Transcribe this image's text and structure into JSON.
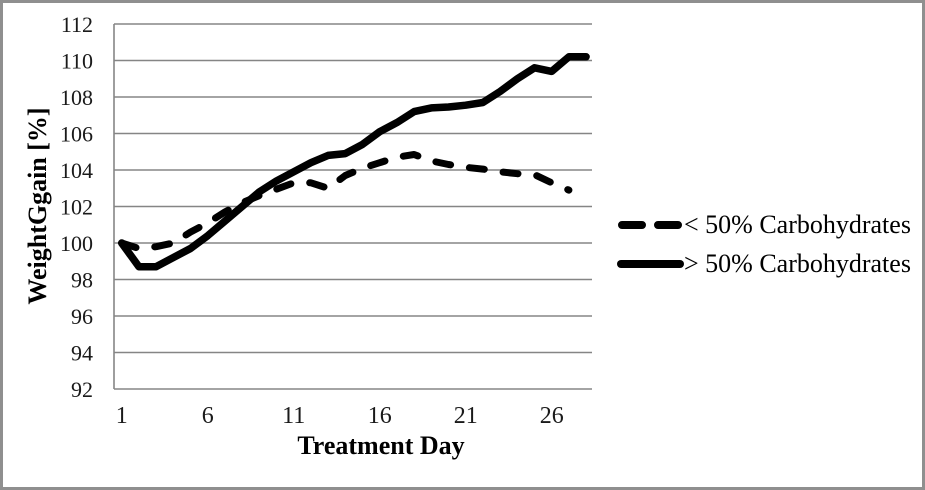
{
  "frame": {
    "background_color": "#ffffff",
    "border_color": "#8f8f8f"
  },
  "chart_data": {
    "type": "line",
    "title": "",
    "xlabel": "Treatment Day",
    "ylabel": "WeightGgain [%]",
    "xlim": [
      1,
      28
    ],
    "ylim": [
      92,
      112
    ],
    "grid": "horizontal",
    "grid_color": "#858585",
    "tick_label_color": "#1a1a1a",
    "yticks": [
      112,
      110,
      108,
      106,
      104,
      102,
      100,
      98,
      96,
      94,
      92
    ],
    "xticks": [
      1,
      6,
      11,
      16,
      21,
      26
    ],
    "legend_position": "right",
    "series": [
      {
        "name": "< 50% Carbohydrates",
        "line_style": "dashed",
        "color": "#000000",
        "start_day": 1,
        "values": [
          100.0,
          99.7,
          99.8,
          100.0,
          100.6,
          101.1,
          101.7,
          102.2,
          102.6,
          102.95,
          103.3,
          103.3,
          103.0,
          103.7,
          104.1,
          104.4,
          104.7,
          104.85,
          104.5,
          104.3,
          104.15,
          104.05,
          103.9,
          103.8,
          103.75,
          103.3,
          102.9
        ]
      },
      {
        "name": "> 50% Carbohydrates",
        "line_style": "solid",
        "color": "#000000",
        "start_day": 1,
        "values": [
          100.0,
          98.7,
          98.7,
          99.2,
          99.7,
          100.4,
          101.2,
          102.0,
          102.8,
          103.4,
          103.9,
          104.4,
          104.8,
          104.9,
          105.4,
          106.1,
          106.6,
          107.2,
          107.4,
          107.45,
          107.55,
          107.7,
          108.3,
          109.0,
          109.6,
          109.4,
          110.2,
          110.2
        ]
      }
    ]
  }
}
